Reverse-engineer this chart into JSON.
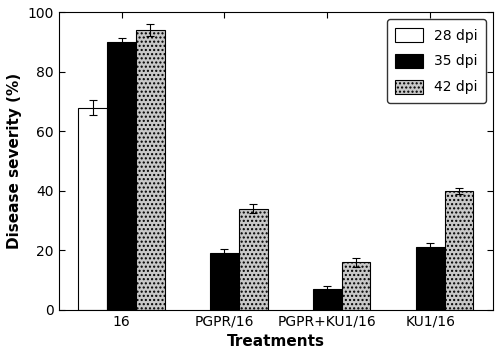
{
  "categories": [
    "16",
    "PGPR/16",
    "PGPR+KU1/16",
    "KU1/16"
  ],
  "values_28dpi": [
    68,
    0,
    0,
    0
  ],
  "values_35dpi": [
    90,
    19,
    7,
    21
  ],
  "values_42dpi": [
    94,
    34,
    16,
    40
  ],
  "errors_28dpi": [
    2.5,
    0,
    0,
    0
  ],
  "errors_35dpi": [
    1.5,
    1.5,
    1.0,
    1.5
  ],
  "errors_42dpi": [
    2.0,
    1.5,
    1.5,
    1.0
  ],
  "color_28dpi": "#ffffff",
  "color_35dpi": "#000000",
  "color_42dpi": "#c8c8c8",
  "ylabel": "Disease severity (%)",
  "xlabel": "Treatments",
  "ylim": [
    0,
    100
  ],
  "yticks": [
    0,
    20,
    40,
    60,
    80,
    100
  ],
  "legend_labels": [
    "28 dpi",
    "35 dpi",
    "42 dpi"
  ],
  "bar_width": 0.28,
  "edgecolor": "#000000",
  "hatch_42dpi": "....",
  "axis_fontsize": 11,
  "tick_fontsize": 10,
  "legend_fontsize": 10
}
